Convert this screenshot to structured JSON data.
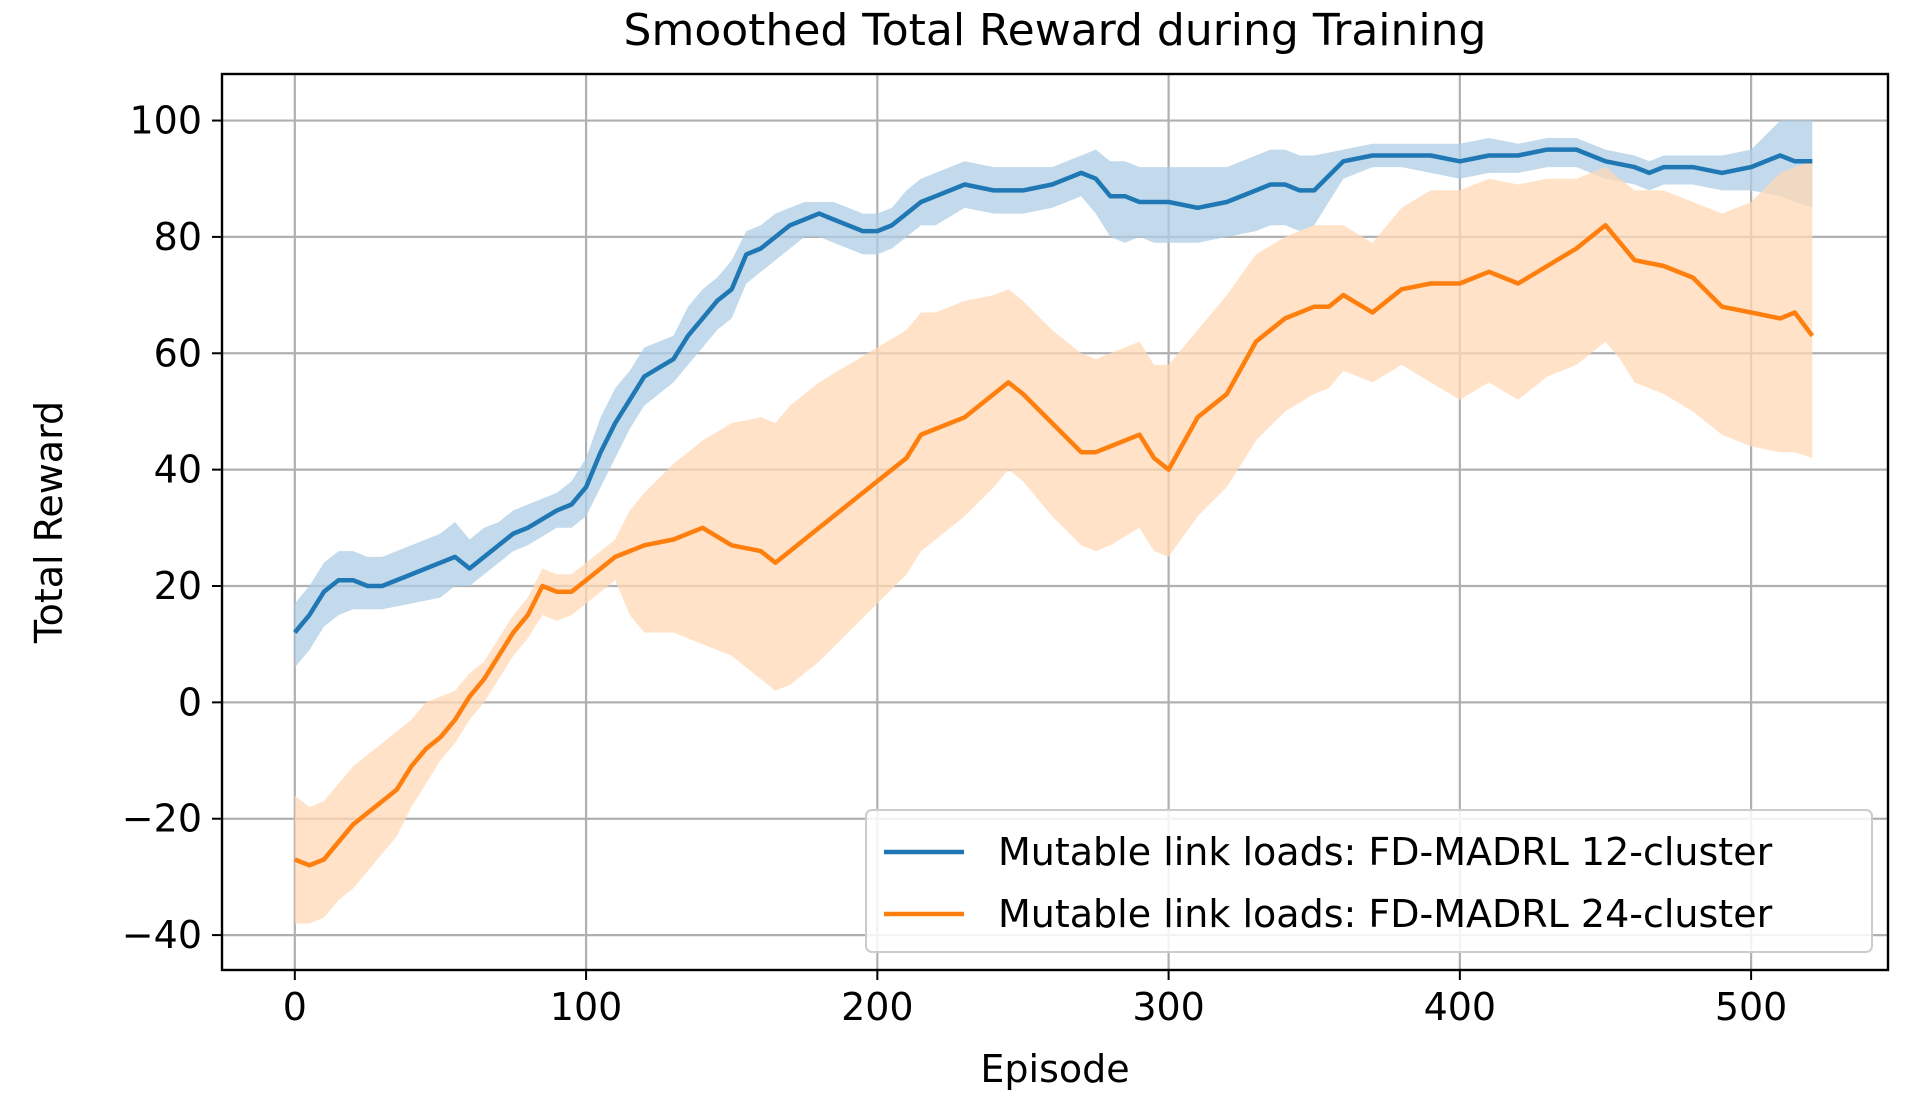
{
  "chart_data": {
    "type": "line",
    "title": "Smoothed Total Reward during Training",
    "xlabel": "Episode",
    "ylabel": "Total Reward",
    "xlim": [
      -25,
      547
    ],
    "ylim": [
      -46,
      108
    ],
    "x_ticks": [
      0,
      100,
      200,
      300,
      400,
      500
    ],
    "x_tick_labels": [
      "0",
      "100",
      "200",
      "300",
      "400",
      "500"
    ],
    "y_ticks": [
      -40,
      -20,
      0,
      20,
      40,
      60,
      80,
      100
    ],
    "y_tick_labels": [
      "−40",
      "−20",
      "0",
      "20",
      "40",
      "60",
      "80",
      "100"
    ],
    "grid": true,
    "legend_position": "lower right",
    "series": [
      {
        "name": "Mutable link loads: FD-MADRL 12-cluster",
        "color": "#1f77b4",
        "band_color": "#aecde6",
        "x": [
          0,
          5,
          10,
          15,
          20,
          25,
          30,
          40,
          50,
          55,
          60,
          65,
          70,
          75,
          80,
          90,
          95,
          100,
          105,
          110,
          115,
          120,
          130,
          135,
          140,
          145,
          150,
          155,
          160,
          165,
          170,
          175,
          180,
          185,
          190,
          195,
          200,
          205,
          210,
          215,
          220,
          230,
          240,
          250,
          260,
          265,
          270,
          275,
          280,
          285,
          290,
          295,
          300,
          310,
          320,
          330,
          335,
          340,
          345,
          350,
          360,
          370,
          380,
          390,
          400,
          410,
          420,
          430,
          440,
          450,
          460,
          465,
          470,
          480,
          490,
          500,
          510,
          515,
          521
        ],
        "values": [
          12,
          15,
          19,
          21,
          21,
          20,
          20,
          22,
          24,
          25,
          23,
          25,
          27,
          29,
          30,
          33,
          34,
          37,
          43,
          48,
          52,
          56,
          59,
          63,
          66,
          69,
          71,
          77,
          78,
          80,
          82,
          83,
          84,
          83,
          82,
          81,
          81,
          82,
          84,
          86,
          87,
          89,
          88,
          88,
          89,
          90,
          91,
          90,
          87,
          87,
          86,
          86,
          86,
          85,
          86,
          88,
          89,
          89,
          88,
          88,
          93,
          94,
          94,
          94,
          93,
          94,
          94,
          95,
          95,
          93,
          92,
          91,
          92,
          92,
          91,
          92,
          94,
          93,
          93
        ],
        "lower": [
          6,
          9,
          13,
          15,
          16,
          16,
          16,
          17,
          18,
          20,
          20,
          22,
          24,
          26,
          27,
          30,
          30,
          32,
          37,
          42,
          47,
          51,
          55,
          58,
          61,
          64,
          66,
          72,
          74,
          76,
          78,
          80,
          80,
          79,
          78,
          77,
          77,
          78,
          80,
          82,
          82,
          85,
          84,
          84,
          85,
          86,
          87,
          84,
          80,
          79,
          80,
          79,
          79,
          79,
          80,
          81,
          82,
          82,
          81,
          82,
          90,
          92,
          92,
          91,
          90,
          91,
          91,
          92,
          92,
          90,
          89,
          88,
          89,
          89,
          88,
          88,
          87,
          86,
          85
        ],
        "upper": [
          17,
          20,
          24,
          26,
          26,
          25,
          25,
          27,
          29,
          31,
          28,
          30,
          31,
          33,
          34,
          36,
          38,
          42,
          49,
          54,
          57,
          61,
          63,
          68,
          71,
          73,
          76,
          81,
          82,
          84,
          85,
          86,
          86,
          86,
          85,
          84,
          84,
          85,
          88,
          90,
          91,
          93,
          92,
          92,
          92,
          93,
          94,
          95,
          93,
          93,
          92,
          92,
          92,
          92,
          92,
          94,
          95,
          95,
          94,
          94,
          95,
          96,
          96,
          96,
          96,
          97,
          96,
          97,
          97,
          95,
          94,
          93,
          94,
          94,
          94,
          95,
          100,
          100,
          100
        ]
      },
      {
        "name": "Mutable link loads: FD-MADRL 24-cluster",
        "color": "#ff7f0e",
        "band_color": "#ffd8b5",
        "x": [
          0,
          5,
          10,
          15,
          20,
          25,
          30,
          35,
          40,
          45,
          50,
          55,
          60,
          65,
          70,
          75,
          80,
          85,
          90,
          95,
          100,
          110,
          115,
          120,
          130,
          140,
          150,
          160,
          165,
          170,
          180,
          190,
          200,
          210,
          215,
          220,
          230,
          240,
          245,
          250,
          260,
          270,
          275,
          280,
          290,
          295,
          300,
          310,
          320,
          330,
          340,
          350,
          355,
          360,
          370,
          380,
          390,
          400,
          410,
          420,
          430,
          440,
          445,
          450,
          455,
          460,
          470,
          480,
          490,
          500,
          510,
          515,
          521
        ],
        "values": [
          -27,
          -28,
          -27,
          -24,
          -21,
          -19,
          -17,
          -15,
          -11,
          -8,
          -6,
          -3,
          1,
          4,
          8,
          12,
          15,
          20,
          19,
          19,
          21,
          25,
          26,
          27,
          28,
          30,
          27,
          26,
          24,
          26,
          30,
          34,
          38,
          42,
          46,
          47,
          49,
          53,
          55,
          53,
          48,
          43,
          43,
          44,
          46,
          42,
          40,
          49,
          53,
          62,
          66,
          68,
          68,
          70,
          67,
          71,
          72,
          72,
          74,
          72,
          75,
          78,
          80,
          82,
          79,
          76,
          75,
          73,
          68,
          67,
          66,
          67,
          63
        ],
        "lower": [
          -38,
          -38,
          -37,
          -34,
          -32,
          -29,
          -26,
          -23,
          -18,
          -14,
          -10,
          -7,
          -3,
          0,
          4,
          8,
          11,
          15,
          14,
          15,
          17,
          21,
          15,
          12,
          12,
          10,
          8,
          4,
          2,
          3,
          7,
          12,
          17,
          22,
          26,
          28,
          32,
          37,
          40,
          38,
          32,
          27,
          26,
          27,
          30,
          26,
          25,
          32,
          37,
          45,
          50,
          53,
          54,
          57,
          55,
          58,
          55,
          52,
          55,
          52,
          56,
          58,
          60,
          62,
          59,
          55,
          53,
          50,
          46,
          44,
          43,
          43,
          42
        ],
        "upper": [
          -16,
          -18,
          -17,
          -14,
          -11,
          -9,
          -7,
          -5,
          -3,
          0,
          1,
          2,
          5,
          7,
          11,
          15,
          18,
          23,
          22,
          22,
          24,
          28,
          33,
          36,
          41,
          45,
          48,
          49,
          48,
          51,
          55,
          58,
          61,
          64,
          67,
          67,
          69,
          70,
          71,
          69,
          64,
          60,
          59,
          60,
          62,
          58,
          58,
          64,
          70,
          77,
          80,
          82,
          82,
          82,
          79,
          85,
          88,
          88,
          90,
          89,
          90,
          90,
          91,
          92,
          90,
          88,
          88,
          86,
          84,
          86,
          91,
          92,
          93
        ]
      }
    ]
  }
}
